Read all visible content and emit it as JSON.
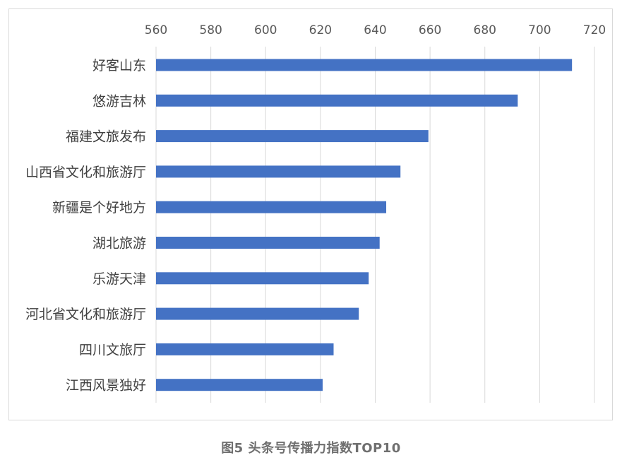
{
  "chart_data": {
    "type": "bar",
    "orientation": "horizontal",
    "categories": [
      "好客山东",
      "悠游吉林",
      "福建文旅发布",
      "山西省文化和旅游厅",
      "新疆是个好地方",
      "湖北旅游",
      "乐游天津",
      "河北省文化和旅游厅",
      "四川文旅厅",
      "江西风景独好"
    ],
    "values": [
      711.8,
      692.0,
      659.4,
      649.2,
      644.0,
      641.6,
      637.6,
      634.0,
      624.8,
      620.8
    ],
    "xlim": [
      560,
      720
    ],
    "xticks": [
      560,
      580,
      600,
      620,
      640,
      660,
      680,
      700,
      720
    ],
    "xaxis_position": "top",
    "grid": true,
    "bar_color": "#4472c4",
    "title": "",
    "xlabel": "",
    "ylabel": ""
  },
  "caption": "图5 头条号传播力指数TOP10"
}
